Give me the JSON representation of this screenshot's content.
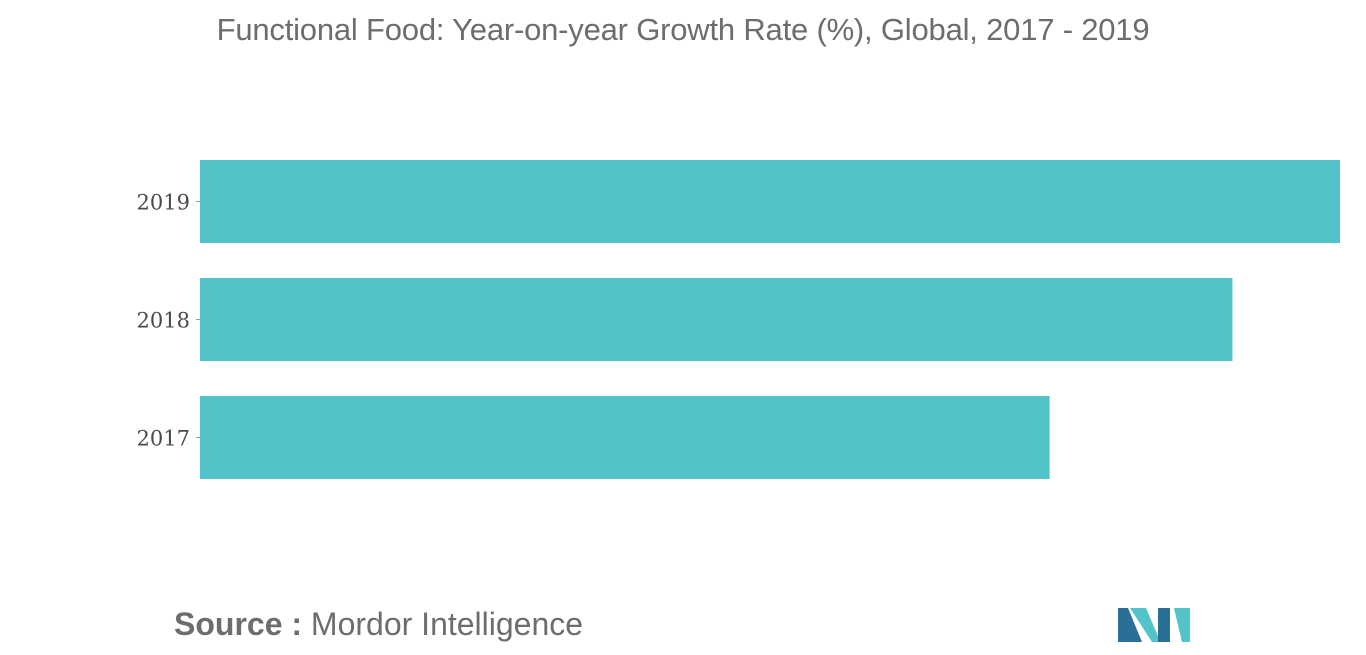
{
  "chart_data": {
    "type": "bar",
    "orientation": "horizontal",
    "title": "Functional Food: Year-on-year Growth Rate (%), Global, 2017 - 2019",
    "categories": [
      "2019",
      "2018",
      "2017"
    ],
    "values": [
      10.6,
      9.6,
      7.9
    ],
    "xlim": [
      0,
      10.6
    ],
    "xlabel": "",
    "ylabel": "",
    "grid": false,
    "legend": "none",
    "bar_color": "#51c3c9"
  },
  "source": {
    "label": "Source :",
    "text": "Mordor Intelligence"
  },
  "logo": {
    "icon": "mordor-intelligence-logo",
    "colors": [
      "#2a6f95",
      "#51c3c9"
    ]
  }
}
